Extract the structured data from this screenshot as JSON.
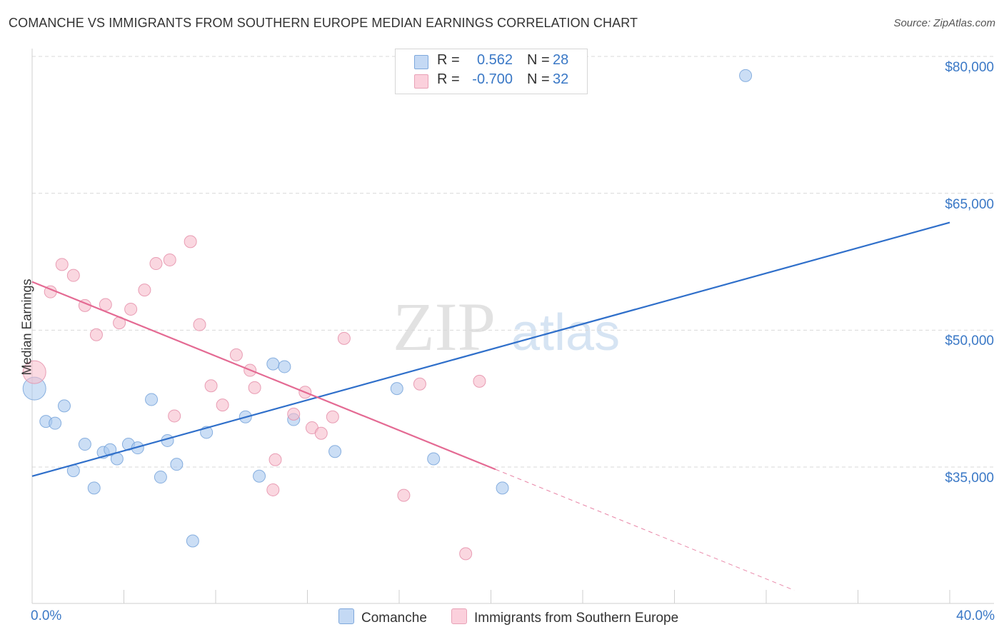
{
  "title": "COMANCHE VS IMMIGRANTS FROM SOUTHERN EUROPE MEDIAN EARNINGS CORRELATION CHART",
  "source": "Source: ZipAtlas.com",
  "watermark": {
    "zip": "ZIP",
    "atlas": "atlas"
  },
  "legend": {
    "r_label": "R =",
    "n_label": "N =",
    "series": [
      {
        "name": "Comanche",
        "r": "0.562",
        "n": "28",
        "color": "#a8c8ef",
        "stroke": "#6f9fd8"
      },
      {
        "name": "Immigrants from Southern Europe",
        "r": "-0.700",
        "n": "32",
        "color": "#f7bccb",
        "stroke": "#e38aa5"
      }
    ]
  },
  "chart_data": {
    "type": "scatter",
    "title": "COMANCHE VS IMMIGRANTS FROM SOUTHERN EUROPE MEDIAN EARNINGS CORRELATION CHART",
    "xlabel": "",
    "ylabel": "Median Earnings",
    "xlim": [
      0,
      40
    ],
    "ylim": [
      21500,
      82000
    ],
    "x_tick_labels": [
      "0.0%",
      "40.0%"
    ],
    "y_ticks": [
      35000,
      50000,
      65000,
      80000
    ],
    "y_tick_labels": [
      "$35,000",
      "$50,000",
      "$65,000",
      "$80,000"
    ],
    "series": [
      {
        "name": "Comanche",
        "color": "#a8c8ef",
        "line_color": "#2f6fca",
        "trend": {
          "x0": 0,
          "y0": 34000,
          "x1": 40,
          "y1": 61800,
          "dash_from": null
        },
        "points": [
          {
            "x": 0.1,
            "y": 43600,
            "big": true
          },
          {
            "x": 0.6,
            "y": 40000
          },
          {
            "x": 1.0,
            "y": 39800
          },
          {
            "x": 1.4,
            "y": 41700
          },
          {
            "x": 1.8,
            "y": 34600
          },
          {
            "x": 2.3,
            "y": 37500
          },
          {
            "x": 2.7,
            "y": 32700
          },
          {
            "x": 3.1,
            "y": 36600
          },
          {
            "x": 3.4,
            "y": 36900
          },
          {
            "x": 3.7,
            "y": 35900
          },
          {
            "x": 4.2,
            "y": 37500
          },
          {
            "x": 4.6,
            "y": 37100
          },
          {
            "x": 5.2,
            "y": 42400
          },
          {
            "x": 5.6,
            "y": 33900
          },
          {
            "x": 5.9,
            "y": 37900
          },
          {
            "x": 6.3,
            "y": 35300
          },
          {
            "x": 7.0,
            "y": 26900
          },
          {
            "x": 7.6,
            "y": 38800
          },
          {
            "x": 9.3,
            "y": 40500
          },
          {
            "x": 9.9,
            "y": 34000
          },
          {
            "x": 10.5,
            "y": 46300
          },
          {
            "x": 11.0,
            "y": 46000
          },
          {
            "x": 11.4,
            "y": 40200
          },
          {
            "x": 13.2,
            "y": 36700
          },
          {
            "x": 15.9,
            "y": 43600
          },
          {
            "x": 17.5,
            "y": 35900
          },
          {
            "x": 20.5,
            "y": 32700
          },
          {
            "x": 31.1,
            "y": 77900
          }
        ]
      },
      {
        "name": "Immigrants from Southern Europe",
        "color": "#f7bccb",
        "line_color": "#e46a93",
        "trend": {
          "x0": 0,
          "y0": 55300,
          "x1": 40,
          "y1": 14600,
          "dash_from": 20.2
        },
        "points": [
          {
            "x": 0.1,
            "y": 45400,
            "big": true
          },
          {
            "x": 0.8,
            "y": 54200
          },
          {
            "x": 1.3,
            "y": 57200
          },
          {
            "x": 1.8,
            "y": 56000
          },
          {
            "x": 2.3,
            "y": 52700
          },
          {
            "x": 2.8,
            "y": 49500
          },
          {
            "x": 3.2,
            "y": 52800
          },
          {
            "x": 3.8,
            "y": 50800
          },
          {
            "x": 4.3,
            "y": 52300
          },
          {
            "x": 4.9,
            "y": 54400
          },
          {
            "x": 5.4,
            "y": 57300
          },
          {
            "x": 6.0,
            "y": 57700
          },
          {
            "x": 6.2,
            "y": 40600
          },
          {
            "x": 6.9,
            "y": 59700
          },
          {
            "x": 7.3,
            "y": 50600
          },
          {
            "x": 7.8,
            "y": 43900
          },
          {
            "x": 8.3,
            "y": 41800
          },
          {
            "x": 8.9,
            "y": 47300
          },
          {
            "x": 9.5,
            "y": 45600
          },
          {
            "x": 9.7,
            "y": 43700
          },
          {
            "x": 10.5,
            "y": 32500
          },
          {
            "x": 10.6,
            "y": 35800
          },
          {
            "x": 11.4,
            "y": 40800
          },
          {
            "x": 11.9,
            "y": 43200
          },
          {
            "x": 12.2,
            "y": 39300
          },
          {
            "x": 12.6,
            "y": 38700
          },
          {
            "x": 13.1,
            "y": 40500
          },
          {
            "x": 13.6,
            "y": 49100
          },
          {
            "x": 16.2,
            "y": 31900
          },
          {
            "x": 16.9,
            "y": 44100
          },
          {
            "x": 18.9,
            "y": 25500
          },
          {
            "x": 19.5,
            "y": 44400
          }
        ]
      }
    ]
  }
}
